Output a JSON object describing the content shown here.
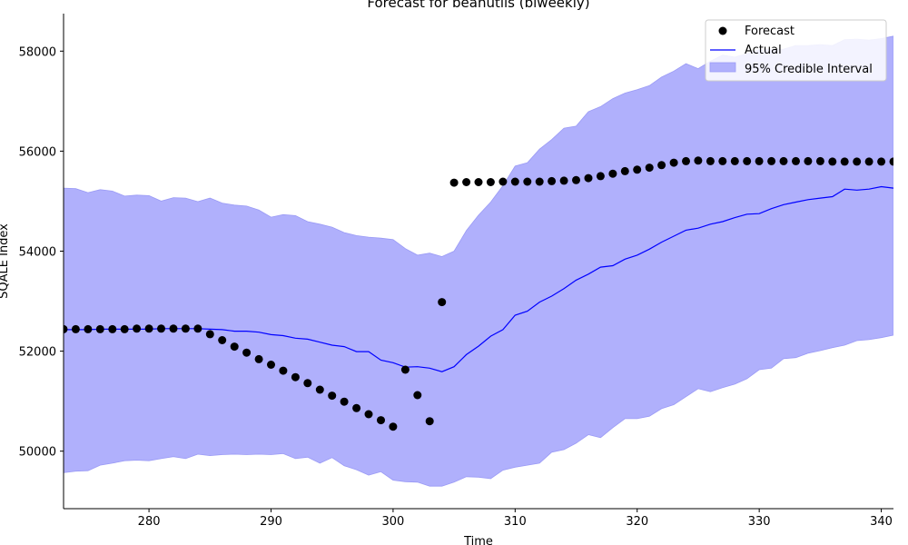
{
  "chart_data": {
    "type": "line",
    "title": "Forecast for beanutils (biweekly)",
    "xlabel": "Time",
    "ylabel": "SQALE Index",
    "xlim": [
      273,
      341
    ],
    "ylim": [
      48850,
      58750
    ],
    "xticks": [
      280,
      290,
      300,
      310,
      320,
      330,
      340
    ],
    "yticks": [
      50000,
      52000,
      54000,
      56000,
      58000
    ],
    "legend_position": "top-right",
    "legend": [
      "Forecast",
      "Actual",
      "95% Credible Interval"
    ],
    "colors": {
      "forecast": "#000000",
      "actual": "#0000ff",
      "interval": "#b0b0fc",
      "interval_edge": "#9a9af5"
    },
    "series": [
      {
        "name": "Forecast",
        "kind": "scatter",
        "x": [
          273,
          274,
          275,
          276,
          277,
          278,
          279,
          280,
          281,
          282,
          283,
          284,
          285,
          286,
          287,
          288,
          289,
          290,
          291,
          292,
          293,
          294,
          295,
          296,
          297,
          298,
          299,
          300,
          301,
          302,
          303,
          304,
          305,
          306,
          307,
          308,
          309,
          310,
          311,
          312,
          313,
          314,
          315,
          316,
          317,
          318,
          319,
          320,
          321,
          322,
          323,
          324,
          325,
          326,
          327,
          328,
          329,
          330,
          331,
          332,
          333,
          334,
          335,
          336,
          337,
          338,
          339,
          340,
          341
        ],
        "y": [
          52440,
          52440,
          52440,
          52440,
          52440,
          52440,
          52450,
          52450,
          52450,
          52450,
          52450,
          52450,
          52340,
          52220,
          52090,
          51970,
          51840,
          51730,
          51610,
          51480,
          51360,
          51230,
          51110,
          50990,
          50860,
          50740,
          50620,
          50490,
          51630,
          51120,
          50600,
          52980,
          55370,
          55380,
          55380,
          55380,
          55390,
          55390,
          55390,
          55390,
          55400,
          55410,
          55420,
          55460,
          55500,
          55550,
          55600,
          55630,
          55670,
          55720,
          55770,
          55800,
          55810,
          55800,
          55800,
          55800,
          55800,
          55800,
          55800,
          55800,
          55800,
          55800,
          55800,
          55790,
          55790,
          55790,
          55790,
          55790,
          55790
        ]
      },
      {
        "name": "Actual",
        "kind": "line",
        "x": [
          273,
          274,
          275,
          276,
          277,
          278,
          279,
          280,
          281,
          282,
          283,
          284,
          285,
          286,
          287,
          288,
          289,
          290,
          291,
          292,
          293,
          294,
          295,
          296,
          297,
          298,
          299,
          300,
          301,
          302,
          303,
          304,
          305,
          306,
          307,
          308,
          309,
          310,
          311,
          312,
          313,
          314,
          315,
          316,
          317,
          318,
          319,
          320,
          321,
          322,
          323,
          324,
          325,
          326,
          327,
          328,
          329,
          330,
          331,
          332,
          333,
          334,
          335,
          336,
          337,
          338,
          339,
          340,
          341
        ],
        "y": [
          52430,
          52430,
          52430,
          52440,
          52440,
          52440,
          52440,
          52440,
          52450,
          52450,
          52450,
          52450,
          52440,
          52430,
          52400,
          52400,
          52380,
          52330,
          52310,
          52260,
          52240,
          52180,
          52120,
          52090,
          51990,
          51990,
          51820,
          51770,
          51680,
          51690,
          51660,
          51590,
          51690,
          51930,
          52100,
          52300,
          52430,
          52720,
          52800,
          52980,
          53100,
          53250,
          53420,
          53540,
          53680,
          53710,
          53840,
          53920,
          54040,
          54180,
          54300,
          54420,
          54460,
          54540,
          54590,
          54670,
          54740,
          54750,
          54850,
          54930,
          54980,
          55030,
          55060,
          55090,
          55240,
          55220,
          55240,
          55290,
          55260
        ]
      },
      {
        "name": "95% Credible Interval",
        "kind": "band",
        "x": [
          273,
          274,
          275,
          276,
          277,
          278,
          279,
          280,
          281,
          282,
          283,
          284,
          285,
          286,
          287,
          288,
          289,
          290,
          291,
          292,
          293,
          294,
          295,
          296,
          297,
          298,
          299,
          300,
          301,
          302,
          303,
          304,
          305,
          306,
          307,
          308,
          309,
          310,
          311,
          312,
          313,
          314,
          315,
          316,
          317,
          318,
          319,
          320,
          321,
          322,
          323,
          324,
          325,
          326,
          327,
          328,
          329,
          330,
          331,
          332,
          333,
          334,
          335,
          336,
          337,
          338,
          339,
          340,
          341
        ],
        "lower": [
          49570,
          49600,
          49610,
          49720,
          49760,
          49810,
          49820,
          49810,
          49850,
          49890,
          49850,
          49940,
          49910,
          49930,
          49940,
          49930,
          49940,
          49930,
          49950,
          49850,
          49880,
          49760,
          49870,
          49710,
          49630,
          49520,
          49590,
          49420,
          49390,
          49380,
          49300,
          49300,
          49380,
          49490,
          49480,
          49450,
          49620,
          49680,
          49720,
          49760,
          49980,
          50030,
          50160,
          50330,
          50270,
          50470,
          50650,
          50650,
          50700,
          50850,
          50930,
          51090,
          51250,
          51190,
          51270,
          51340,
          51450,
          51630,
          51660,
          51850,
          51870,
          51960,
          52010,
          52070,
          52120,
          52210,
          52230,
          52270,
          52320
        ],
        "upper": [
          55260,
          55250,
          55170,
          55230,
          55200,
          55100,
          55120,
          55110,
          55000,
          55070,
          55060,
          54990,
          55060,
          54960,
          54920,
          54900,
          54820,
          54680,
          54730,
          54710,
          54590,
          54540,
          54480,
          54370,
          54310,
          54280,
          54260,
          54230,
          54050,
          53920,
          53960,
          53890,
          54000,
          54410,
          54720,
          54980,
          55310,
          55700,
          55770,
          56040,
          56230,
          56460,
          56500,
          56790,
          56890,
          57050,
          57160,
          57230,
          57310,
          57480,
          57600,
          57750,
          57650,
          57800,
          57920,
          57880,
          57950,
          58030,
          58030,
          58040,
          58110,
          58110,
          58130,
          58110,
          58230,
          58240,
          58220,
          58250,
          58300
        ]
      }
    ]
  }
}
